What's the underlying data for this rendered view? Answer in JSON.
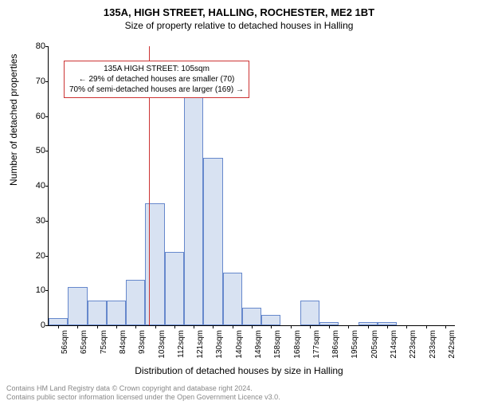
{
  "titles": {
    "line1": "135A, HIGH STREET, HALLING, ROCHESTER, ME2 1BT",
    "line2": "Size of property relative to detached houses in Halling"
  },
  "chart": {
    "type": "histogram",
    "ylabel": "Number of detached properties",
    "xlabel": "Distribution of detached houses by size in Halling",
    "ylim": [
      0,
      80
    ],
    "ytick_step": 10,
    "yticks": [
      0,
      10,
      20,
      30,
      40,
      50,
      60,
      70,
      80
    ],
    "xticks": [
      "56sqm",
      "65sqm",
      "75sqm",
      "84sqm",
      "93sqm",
      "103sqm",
      "112sqm",
      "121sqm",
      "130sqm",
      "140sqm",
      "149sqm",
      "158sqm",
      "168sqm",
      "177sqm",
      "186sqm",
      "195sqm",
      "205sqm",
      "214sqm",
      "223sqm",
      "233sqm",
      "242sqm"
    ],
    "values": [
      2,
      11,
      7,
      7,
      13,
      35,
      21,
      68,
      48,
      15,
      5,
      3,
      0,
      7,
      1,
      0,
      1,
      1,
      0,
      0,
      0
    ],
    "bar_fill": "#d8e2f2",
    "bar_stroke": "#6688cc",
    "bar_width": 1.0,
    "background_color": "#ffffff",
    "axis_color": "#000000",
    "tick_fontsize": 10,
    "label_fontsize": 12,
    "title_fontsize": 13,
    "marker": {
      "position_sqm": 105,
      "position_index": 5.2,
      "color": "#cc3333",
      "line_width": 1.5
    },
    "annotation": {
      "border_color": "#cc3333",
      "background": "#ffffff",
      "fontsize": 10,
      "lines": [
        "135A HIGH STREET: 105sqm",
        "← 29% of detached houses are smaller (70)",
        "70% of semi-detached houses are larger (169) →"
      ]
    }
  },
  "footer": {
    "line1": "Contains HM Land Registry data © Crown copyright and database right 2024.",
    "line2": "Contains public sector information licensed under the Open Government Licence v3.0.",
    "color": "#888888",
    "fontsize": 9
  }
}
